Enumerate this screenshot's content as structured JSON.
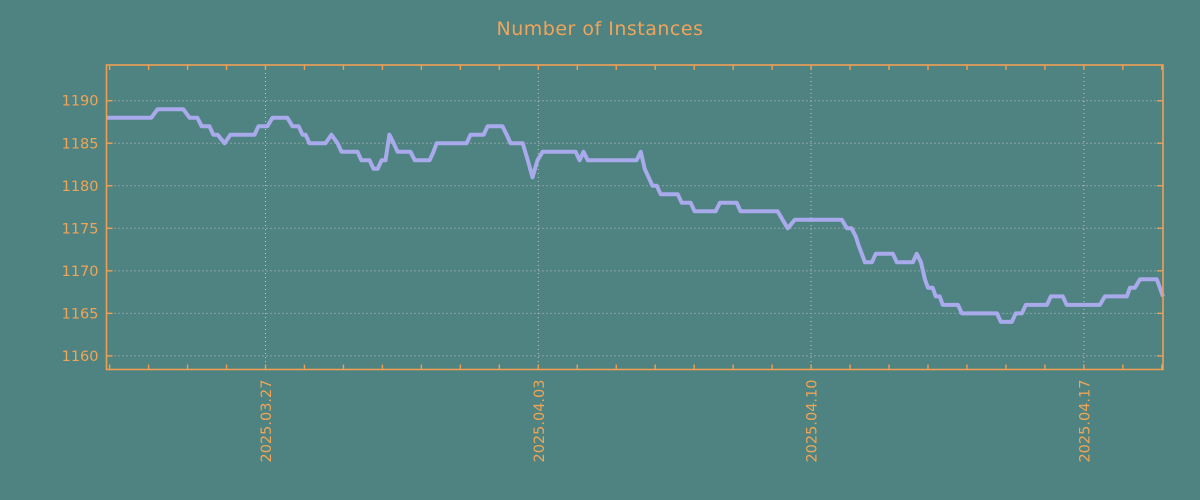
{
  "colors": {
    "background": "#4e8381",
    "line": "#a8aaec",
    "axis": "#ef9f54",
    "label_text": "#efa557",
    "grid": "#c2c2c2"
  },
  "chart_data": {
    "type": "line",
    "title": "Number of Instances",
    "xlabel": "",
    "ylabel": "",
    "legend": "none",
    "grid": "dotted",
    "x_tick_labels": [
      "2025.03.27",
      "2025.04.03",
      "2025.04.10",
      "2025.04.17"
    ],
    "x_tick_days": [
      0,
      7,
      14,
      21
    ],
    "x_minor_tick_step_days": 1,
    "x_range_days": [
      -4.08,
      23.03
    ],
    "y_ticks": [
      1160,
      1165,
      1170,
      1175,
      1180,
      1185,
      1190
    ],
    "y_range": [
      1158.4,
      1194.2
    ],
    "series": [
      {
        "name": "instances",
        "points": [
          [
            -4.08,
            1188
          ],
          [
            -2.93,
            1188
          ],
          [
            -2.77,
            1189
          ],
          [
            -2.11,
            1189
          ],
          [
            -1.95,
            1188
          ],
          [
            -1.75,
            1188
          ],
          [
            -1.64,
            1187
          ],
          [
            -1.44,
            1187
          ],
          [
            -1.34,
            1186
          ],
          [
            -1.23,
            1186
          ],
          [
            -1.05,
            1185
          ],
          [
            -0.9,
            1186
          ],
          [
            -0.28,
            1186
          ],
          [
            -0.18,
            1187
          ],
          [
            0.05,
            1187
          ],
          [
            0.18,
            1188
          ],
          [
            0.56,
            1188
          ],
          [
            0.69,
            1187
          ],
          [
            0.85,
            1187
          ],
          [
            0.95,
            1186
          ],
          [
            1.03,
            1186
          ],
          [
            1.13,
            1185
          ],
          [
            1.44,
            1185
          ],
          [
            1.54,
            1185
          ],
          [
            1.69,
            1186
          ],
          [
            1.85,
            1185
          ],
          [
            1.95,
            1184
          ],
          [
            2.36,
            1184
          ],
          [
            2.46,
            1183
          ],
          [
            2.67,
            1183
          ],
          [
            2.77,
            1182
          ],
          [
            2.88,
            1182
          ],
          [
            2.98,
            1183
          ],
          [
            3.08,
            1183
          ],
          [
            3.18,
            1186
          ],
          [
            3.29,
            1185
          ],
          [
            3.39,
            1184
          ],
          [
            3.72,
            1184
          ],
          [
            3.83,
            1183
          ],
          [
            4.21,
            1183
          ],
          [
            4.31,
            1184
          ],
          [
            4.39,
            1185
          ],
          [
            5.16,
            1185
          ],
          [
            5.26,
            1186
          ],
          [
            5.6,
            1186
          ],
          [
            5.7,
            1187
          ],
          [
            6.08,
            1187
          ],
          [
            6.19,
            1186
          ],
          [
            6.29,
            1185
          ],
          [
            6.6,
            1185
          ],
          [
            6.73,
            1183
          ],
          [
            6.85,
            1181
          ],
          [
            6.98,
            1183
          ],
          [
            7.11,
            1184
          ],
          [
            7.96,
            1184
          ],
          [
            8.06,
            1183
          ],
          [
            8.16,
            1184
          ],
          [
            8.27,
            1183
          ],
          [
            9.52,
            1183
          ],
          [
            9.63,
            1184
          ],
          [
            9.73,
            1182
          ],
          [
            9.83,
            1181
          ],
          [
            9.93,
            1180
          ],
          [
            10.04,
            1180
          ],
          [
            10.14,
            1179
          ],
          [
            10.58,
            1179
          ],
          [
            10.68,
            1178
          ],
          [
            10.91,
            1178
          ],
          [
            11.01,
            1177
          ],
          [
            11.55,
            1177
          ],
          [
            11.66,
            1178
          ],
          [
            12.09,
            1178
          ],
          [
            12.19,
            1177
          ],
          [
            13.14,
            1177
          ],
          [
            13.4,
            1175
          ],
          [
            13.58,
            1176
          ],
          [
            14.79,
            1176
          ],
          [
            14.92,
            1175
          ],
          [
            15.04,
            1175
          ],
          [
            15.15,
            1174
          ],
          [
            15.22,
            1173
          ],
          [
            15.3,
            1172
          ],
          [
            15.38,
            1171
          ],
          [
            15.56,
            1171
          ],
          [
            15.66,
            1172
          ],
          [
            16.1,
            1172
          ],
          [
            16.2,
            1171
          ],
          [
            16.61,
            1171
          ],
          [
            16.71,
            1172
          ],
          [
            16.82,
            1171
          ],
          [
            16.92,
            1169
          ],
          [
            17.0,
            1168
          ],
          [
            17.12,
            1168
          ],
          [
            17.2,
            1167
          ],
          [
            17.3,
            1167
          ],
          [
            17.38,
            1166
          ],
          [
            17.77,
            1166
          ],
          [
            17.87,
            1165
          ],
          [
            18.77,
            1165
          ],
          [
            18.87,
            1164
          ],
          [
            19.15,
            1164
          ],
          [
            19.25,
            1165
          ],
          [
            19.41,
            1165
          ],
          [
            19.51,
            1166
          ],
          [
            20.05,
            1166
          ],
          [
            20.15,
            1167
          ],
          [
            20.46,
            1167
          ],
          [
            20.56,
            1166
          ],
          [
            21.41,
            1166
          ],
          [
            21.54,
            1167
          ],
          [
            22.1,
            1167
          ],
          [
            22.18,
            1168
          ],
          [
            22.31,
            1168
          ],
          [
            22.44,
            1169
          ],
          [
            22.87,
            1169
          ],
          [
            22.95,
            1168
          ],
          [
            23.03,
            1167
          ]
        ]
      }
    ]
  }
}
